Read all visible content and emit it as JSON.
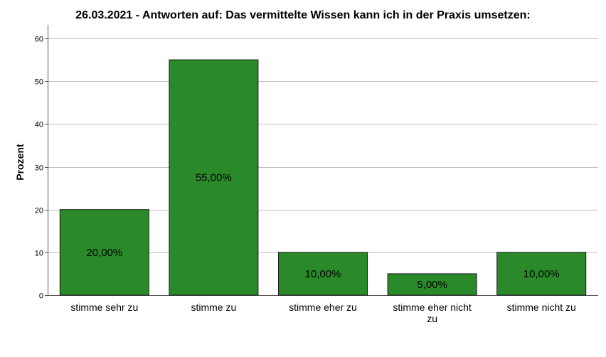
{
  "chart_data": {
    "type": "bar",
    "title": "26.03.2021 - Antworten auf: Das vermittelte Wissen kann ich in der Praxis umsetzen:",
    "xlabel": "",
    "ylabel": "Prozent",
    "categories": [
      "stimme sehr zu",
      "stimme zu",
      "stimme eher zu",
      "stimme eher nicht zu",
      "stimme nicht zu"
    ],
    "values": [
      20,
      55,
      10,
      5,
      10
    ],
    "data_labels": [
      "20,00%",
      "55,00%",
      "10,00%",
      "5,00%",
      "10,00%"
    ],
    "ylim": [
      0,
      60
    ],
    "yticks": [
      0,
      10,
      20,
      30,
      40,
      50,
      60
    ],
    "grid": true,
    "colors": {
      "bar_fill": "#2a8a2a",
      "bar_stroke": "#1a1a1a",
      "grid": "#c0c0c0",
      "axis": "#555555"
    }
  }
}
